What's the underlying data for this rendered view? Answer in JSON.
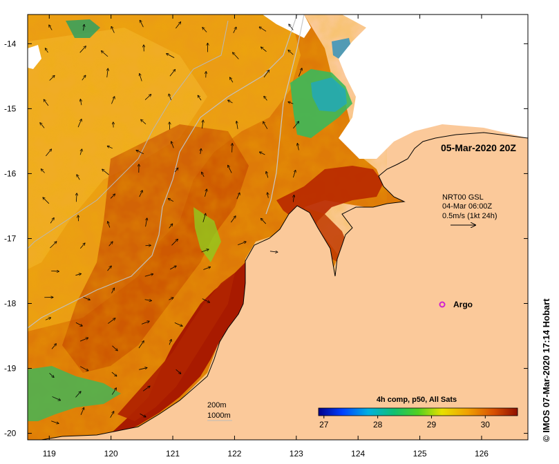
{
  "title": "05-Mar-2020 20Z",
  "current_info": {
    "line1": "NRT00 GSL",
    "line2": "04-Mar 06:00Z",
    "line3": "0.5m/s (1kt 24h)"
  },
  "argo_label": "Argo",
  "depth_legend": {
    "line1": "200m",
    "line2": "1000m"
  },
  "colorbar": {
    "title": "4h comp, p50, All Sats",
    "ticks": [
      "27",
      "28",
      "29",
      "30"
    ],
    "min": 26.9,
    "max": 30.6,
    "tick_values": [
      27,
      28,
      29,
      30
    ]
  },
  "credit": "© IMOS 07-Mar-2020 17:14 Hobart",
  "x_ticks": [
    "119",
    "120",
    "121",
    "122",
    "123",
    "124",
    "125",
    "126"
  ],
  "y_ticks": [
    "-14",
    "-15",
    "-16",
    "-17",
    "-18",
    "-19",
    "-20"
  ],
  "axes": {
    "lon_min": 118.65,
    "lon_max": 126.75,
    "lat_min": -20.1,
    "lat_max": -13.55
  },
  "colors": {
    "land": "#fbc99a",
    "cloud": "#ffffff",
    "sst_hot": "#a81a00",
    "sst_warm": "#d55f00",
    "sst_mid": "#e8a000",
    "sst_cool": "#2fb56a",
    "arrow": "#000000",
    "argo": "#d020d0"
  }
}
